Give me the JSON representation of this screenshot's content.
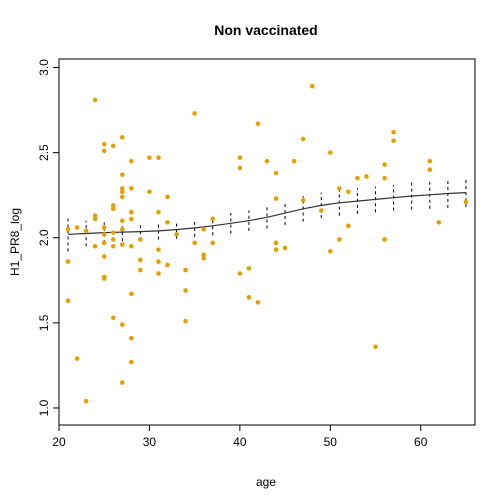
{
  "chart_data": {
    "type": "scatter",
    "title": "Non vaccinated",
    "xlabel": "age",
    "ylabel": "H1_PR8_log",
    "xlim": [
      20,
      66
    ],
    "ylim": [
      0.9,
      3.05
    ],
    "xticks": [
      20,
      30,
      40,
      50,
      60
    ],
    "yticks": [
      1.0,
      1.5,
      2.0,
      2.5,
      3.0
    ],
    "xtick_labels": [
      "20",
      "30",
      "40",
      "50",
      "60"
    ],
    "ytick_labels": [
      "1.0",
      "1.5",
      "2.0",
      "2.5",
      "3.0"
    ],
    "point_color": "#E69F00",
    "line_color": "#333333",
    "points": [
      [
        21,
        1.63
      ],
      [
        21,
        1.86
      ],
      [
        21,
        2.05
      ],
      [
        22,
        1.29
      ],
      [
        22,
        2.06
      ],
      [
        23,
        1.04
      ],
      [
        23,
        2.04
      ],
      [
        24,
        2.81
      ],
      [
        24,
        2.13
      ],
      [
        24,
        2.11
      ],
      [
        24,
        1.95
      ],
      [
        25,
        2.55
      ],
      [
        25,
        2.51
      ],
      [
        25,
        2.06
      ],
      [
        25,
        2.02
      ],
      [
        25,
        1.97
      ],
      [
        25,
        1.89
      ],
      [
        25,
        1.77
      ],
      [
        25,
        1.76
      ],
      [
        26,
        2.54
      ],
      [
        26,
        2.19
      ],
      [
        26,
        2.17
      ],
      [
        26,
        2.03
      ],
      [
        26,
        1.99
      ],
      [
        26,
        1.95
      ],
      [
        26,
        1.53
      ],
      [
        27,
        2.59
      ],
      [
        27,
        2.37
      ],
      [
        27,
        2.29
      ],
      [
        27,
        2.27
      ],
      [
        27,
        2.24
      ],
      [
        27,
        2.1
      ],
      [
        27,
        2.05
      ],
      [
        27,
        1.96
      ],
      [
        27,
        1.49
      ],
      [
        27,
        1.15
      ],
      [
        28,
        2.45
      ],
      [
        28,
        2.29
      ],
      [
        28,
        2.15
      ],
      [
        28,
        2.11
      ],
      [
        28,
        1.95
      ],
      [
        28,
        1.67
      ],
      [
        28,
        1.41
      ],
      [
        28,
        1.27
      ],
      [
        29,
        1.99
      ],
      [
        29,
        1.87
      ],
      [
        29,
        1.81
      ],
      [
        30,
        2.47
      ],
      [
        30,
        2.27
      ],
      [
        31,
        2.47
      ],
      [
        31,
        2.15
      ],
      [
        31,
        1.93
      ],
      [
        31,
        1.86
      ],
      [
        31,
        1.79
      ],
      [
        32,
        2.24
      ],
      [
        32,
        2.09
      ],
      [
        32,
        1.84
      ],
      [
        33,
        2.02
      ],
      [
        34,
        1.81
      ],
      [
        34,
        1.69
      ],
      [
        34,
        1.51
      ],
      [
        35,
        2.73
      ],
      [
        35,
        1.97
      ],
      [
        36,
        1.9
      ],
      [
        36,
        1.88
      ],
      [
        36,
        2.05
      ],
      [
        37,
        2.11
      ],
      [
        37,
        1.97
      ],
      [
        40,
        2.47
      ],
      [
        40,
        2.41
      ],
      [
        40,
        1.79
      ],
      [
        41,
        1.82
      ],
      [
        41,
        1.65
      ],
      [
        42,
        2.67
      ],
      [
        42,
        1.62
      ],
      [
        43,
        2.45
      ],
      [
        44,
        2.38
      ],
      [
        44,
        2.23
      ],
      [
        44,
        1.97
      ],
      [
        44,
        1.93
      ],
      [
        45,
        1.94
      ],
      [
        46,
        2.45
      ],
      [
        47,
        2.58
      ],
      [
        47,
        2.22
      ],
      [
        48,
        2.89
      ],
      [
        49,
        2.16
      ],
      [
        50,
        2.5
      ],
      [
        50,
        1.92
      ],
      [
        51,
        2.29
      ],
      [
        51,
        1.99
      ],
      [
        52,
        2.27
      ],
      [
        52,
        2.07
      ],
      [
        53,
        2.35
      ],
      [
        54,
        2.36
      ],
      [
        55,
        1.36
      ],
      [
        56,
        2.43
      ],
      [
        56,
        2.35
      ],
      [
        56,
        1.99
      ],
      [
        57,
        2.62
      ],
      [
        57,
        2.57
      ],
      [
        61,
        2.45
      ],
      [
        61,
        2.4
      ],
      [
        62,
        2.09
      ],
      [
        65,
        2.21
      ]
    ],
    "fit": {
      "x": [
        21,
        23,
        25,
        27,
        29,
        31,
        33,
        35,
        37,
        39,
        41,
        43,
        45,
        47,
        49,
        51,
        53,
        55,
        57,
        59,
        61,
        63,
        65
      ],
      "y": [
        2.02,
        2.025,
        2.03,
        2.033,
        2.036,
        2.04,
        2.048,
        2.058,
        2.07,
        2.085,
        2.1,
        2.12,
        2.145,
        2.17,
        2.19,
        2.205,
        2.215,
        2.225,
        2.235,
        2.245,
        2.252,
        2.26,
        2.265
      ],
      "lower": [
        1.92,
        1.95,
        1.97,
        1.98,
        1.985,
        1.99,
        1.995,
        2.005,
        2.015,
        2.025,
        2.04,
        2.055,
        2.075,
        2.095,
        2.115,
        2.13,
        2.14,
        2.15,
        2.16,
        2.165,
        2.17,
        2.175,
        2.18
      ],
      "upper": [
        2.12,
        2.1,
        2.09,
        2.086,
        2.088,
        2.09,
        2.1,
        2.11,
        2.125,
        2.145,
        2.16,
        2.185,
        2.215,
        2.245,
        2.265,
        2.28,
        2.29,
        2.3,
        2.31,
        2.325,
        2.335,
        2.345,
        2.35
      ]
    },
    "grid": false,
    "legend": "none"
  }
}
